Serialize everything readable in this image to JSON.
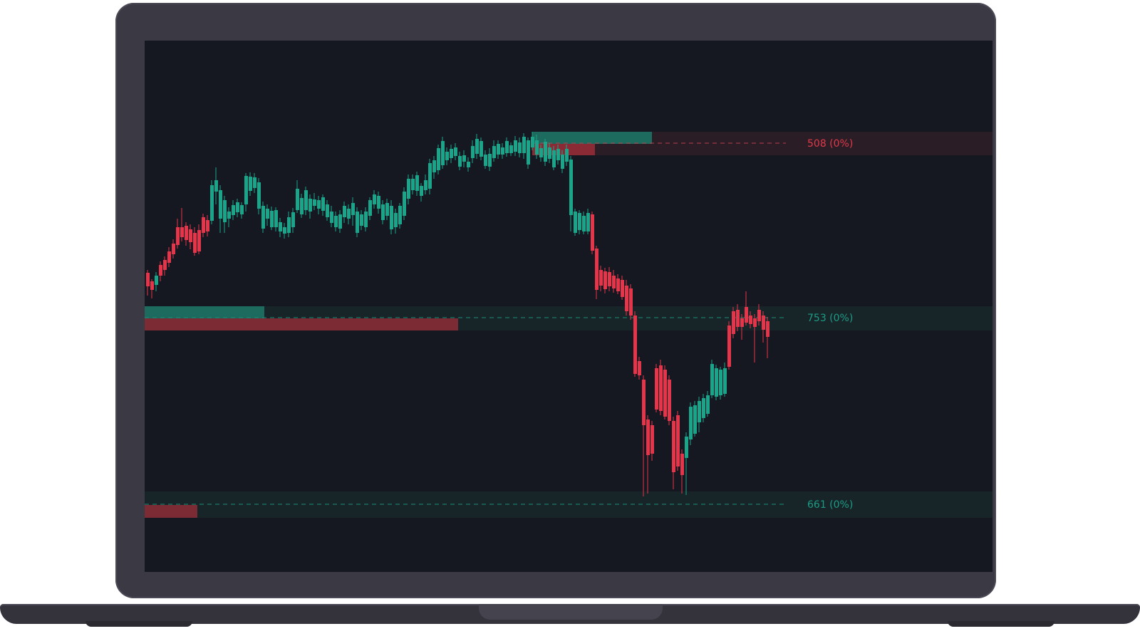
{
  "chart_data": {
    "type": "candlestick",
    "levels": [
      {
        "label": "508 (0%)",
        "color": "#e0394b"
      },
      {
        "label": "753 (0%)",
        "color": "#1c9c85"
      },
      {
        "label": "661 (0%)",
        "color": "#1c9c85"
      }
    ]
  },
  "colors": {
    "bull": "#1aa58a",
    "bear": "#e5354a",
    "screen_bg": "#151821",
    "laptop_body": "#3b3a44"
  }
}
